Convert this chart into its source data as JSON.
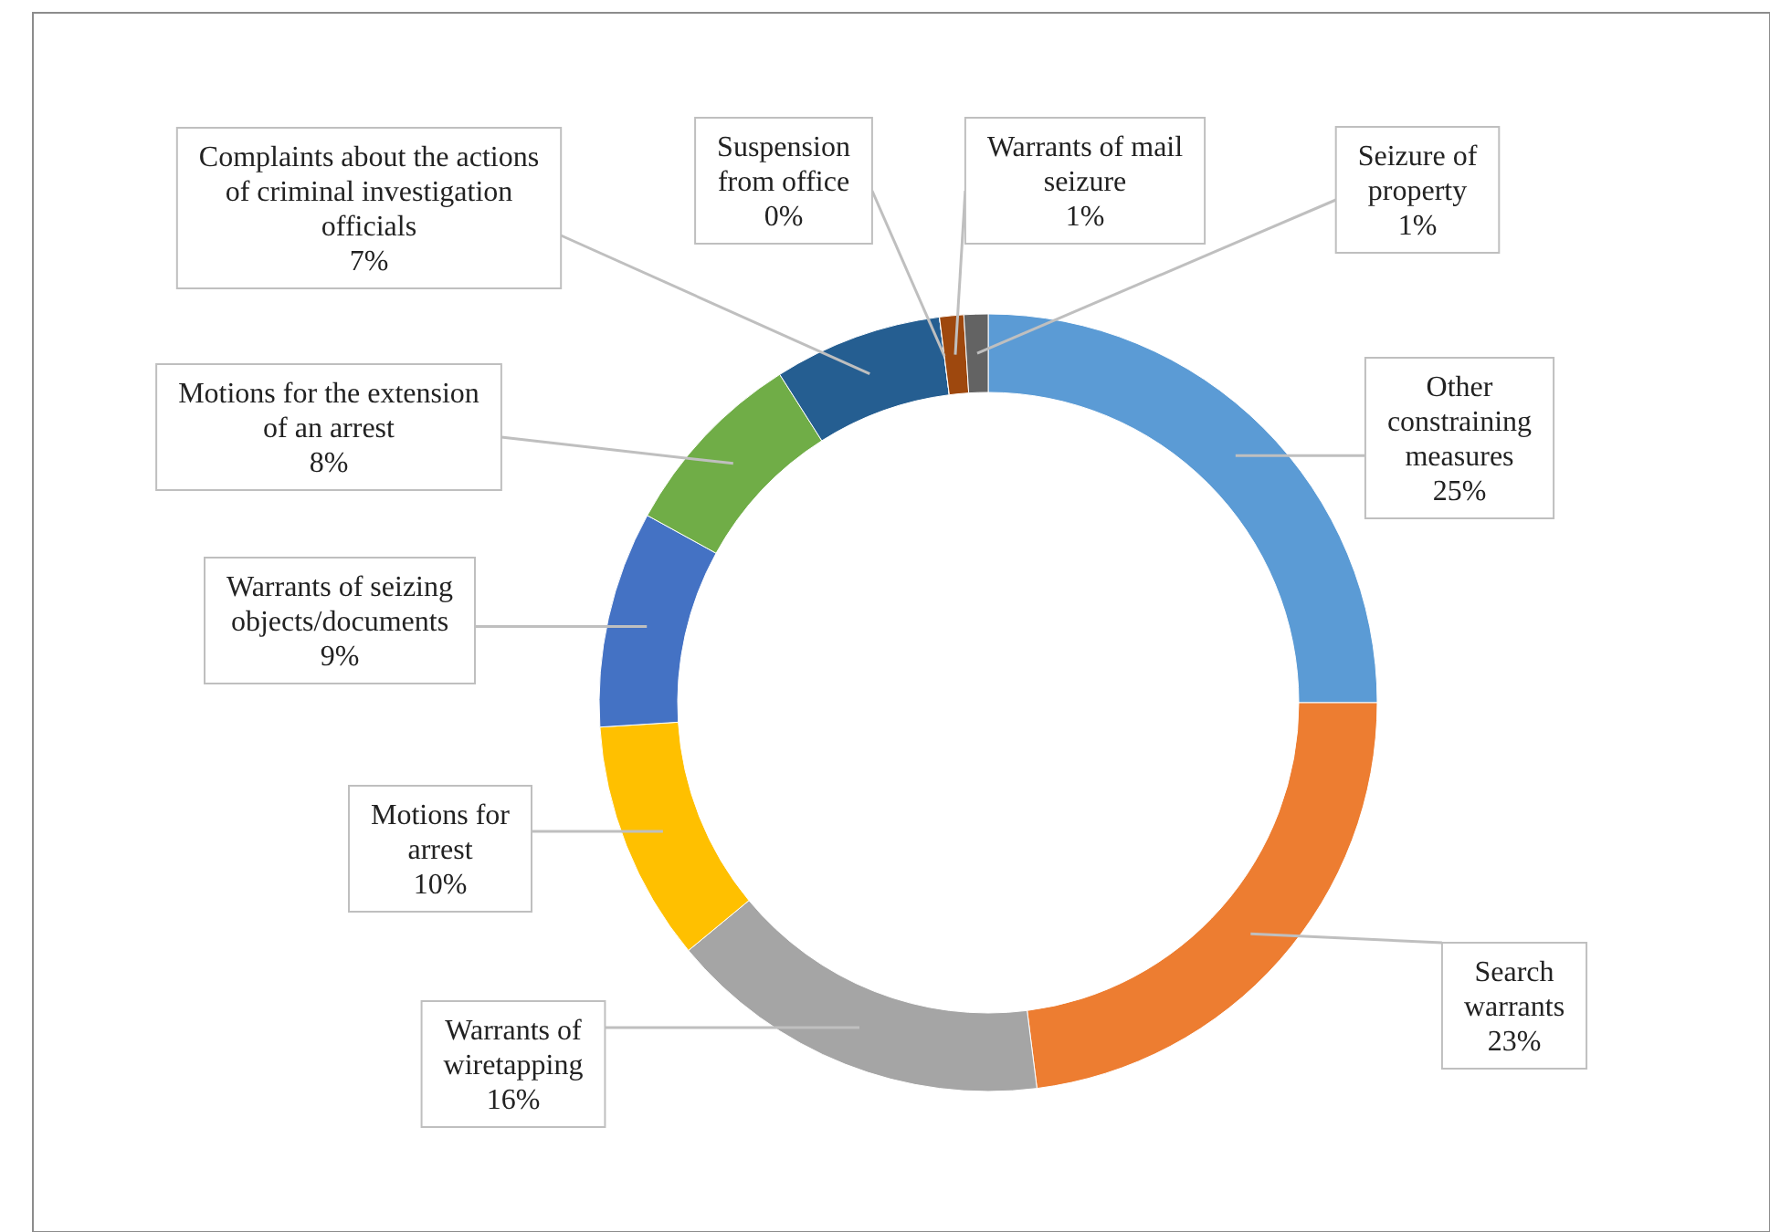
{
  "chart_data": {
    "type": "donut",
    "categories": [
      "Other constraining measures",
      "Search warrants",
      "Warrants of wiretapping",
      "Motions for arrest",
      "Warrants of seizing objects/documents",
      "Motions for the extension of an arrest",
      "Complaints about the actions of criminal investigation officials",
      "Suspension from office",
      "Warrants of mail seizure",
      "Seizure of property"
    ],
    "values": [
      25,
      23,
      16,
      10,
      9,
      8,
      7,
      0,
      1,
      1
    ],
    "value_labels": [
      "25%",
      "23%",
      "16%",
      "10%",
      "9%",
      "8%",
      "7%",
      "0%",
      "1%",
      "1%"
    ],
    "colors": [
      "#5b9bd5",
      "#ed7d31",
      "#a5a5a5",
      "#ffc000",
      "#4472c4",
      "#70ad47",
      "#255e91",
      "#997300",
      "#9e480e",
      "#636363"
    ]
  }
}
